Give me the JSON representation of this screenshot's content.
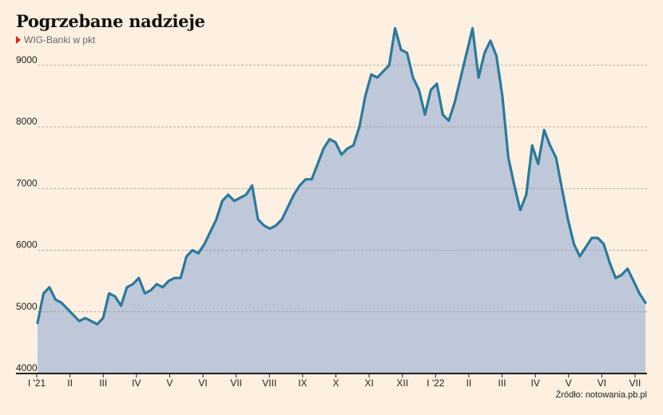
{
  "title": "Pogrzebane nadzieje",
  "subtitle": "WIG-Banki w pkt",
  "source": "Źródło: notowania.pb.pl",
  "colors": {
    "line": "#2b7a9c",
    "area": "#bec8d8",
    "grid": "#999999",
    "axis": "#222222",
    "marker": "#e32219"
  },
  "chart_data": {
    "type": "area",
    "ylim": [
      4000,
      9700
    ],
    "yticks": [
      4000,
      5000,
      6000,
      7000,
      8000,
      9000
    ],
    "grid": "horizontal dashed",
    "xticks": [
      "I '21",
      "II",
      "III",
      "IV",
      "V",
      "VI",
      "VII",
      "VIII",
      "IX",
      "X",
      "XI",
      "XII",
      "I '22",
      "II",
      "III",
      "IV",
      "V",
      "VI",
      "VII"
    ],
    "series": [
      {
        "values": [
          4820,
          5300,
          5400,
          5200,
          5150,
          5050,
          4950,
          4850,
          4900,
          4850,
          4800,
          4900,
          5300,
          5250,
          5100,
          5400,
          5450,
          5550,
          5300,
          5350,
          5450,
          5400,
          5500,
          5550,
          5550,
          5900,
          6000,
          5950,
          6100,
          6300,
          6500,
          6800,
          6900,
          6800,
          6850,
          6900,
          7050,
          6500,
          6400,
          6350,
          6400,
          6500,
          6700,
          6900,
          7050,
          7150,
          7150,
          7400,
          7650,
          7800,
          7750,
          7550,
          7650,
          7700,
          8000,
          8500,
          8850,
          8800,
          8900,
          9000,
          9600,
          9250,
          9200,
          8800,
          8600,
          8200,
          8600,
          8700,
          8200,
          8100,
          8400,
          8800,
          9200,
          9600,
          8800,
          9200,
          9400,
          9150,
          8500,
          7500,
          7050,
          6650,
          6900,
          7700,
          7400,
          7950,
          7700,
          7500,
          7000,
          6500,
          6100,
          5900,
          6050,
          6200,
          6200,
          6100,
          5800,
          5550,
          5600,
          5700,
          5500,
          5300,
          5150
        ]
      }
    ]
  }
}
